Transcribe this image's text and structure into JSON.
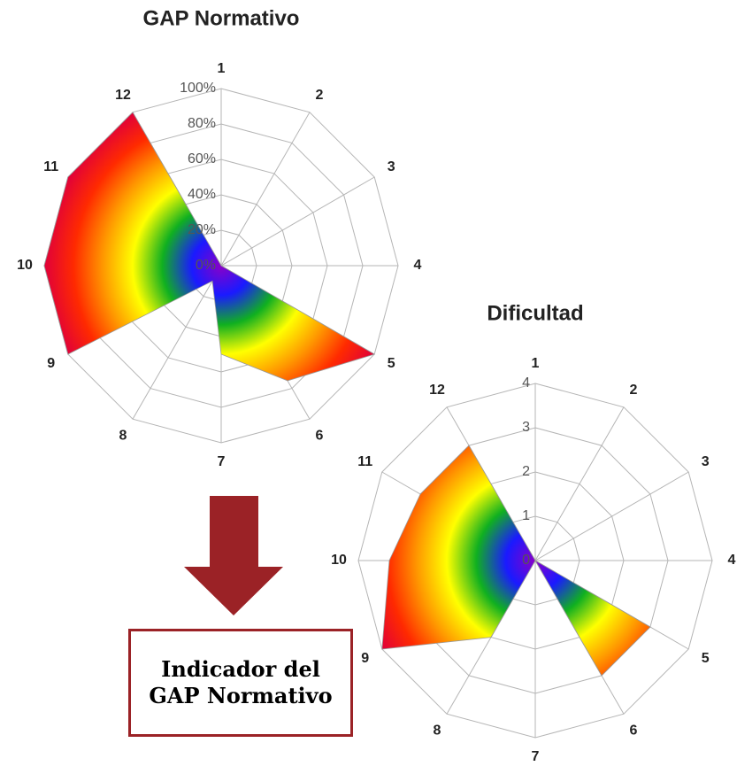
{
  "chart_data": [
    {
      "type": "radar",
      "title": "GAP Normativo",
      "categories": [
        "1",
        "2",
        "3",
        "4",
        "5",
        "6",
        "7",
        "8",
        "9",
        "10",
        "11",
        "12"
      ],
      "values": [
        0,
        0,
        0,
        0,
        100,
        75,
        50,
        10,
        100,
        100,
        100,
        100
      ],
      "ylim": [
        0,
        100
      ],
      "yticks": [
        {
          "value": 0,
          "label": "0%"
        },
        {
          "value": 20,
          "label": "20%"
        },
        {
          "value": 40,
          "label": "40%"
        },
        {
          "value": 60,
          "label": "60%"
        },
        {
          "value": 80,
          "label": "80%"
        },
        {
          "value": 100,
          "label": "100%"
        }
      ],
      "grid": true,
      "colors": [
        "#8a00c8",
        "#1a1aff",
        "#10b020",
        "#ffff00",
        "#ff9900",
        "#ff2a00",
        "#e0003a"
      ]
    },
    {
      "type": "radar",
      "title": "Dificultad",
      "categories": [
        "1",
        "2",
        "3",
        "4",
        "5",
        "6",
        "7",
        "8",
        "9",
        "10",
        "11",
        "12"
      ],
      "values": [
        0,
        0,
        0,
        0,
        3,
        3,
        0,
        2,
        4,
        3.3,
        3,
        3
      ],
      "ylim": [
        0,
        4
      ],
      "yticks": [
        0,
        1,
        2,
        3,
        4
      ],
      "grid": true,
      "colors": [
        "#8a00c8",
        "#1a1aff",
        "#10b020",
        "#ffff00",
        "#ff9900",
        "#ff2a00",
        "#e0003a"
      ]
    }
  ],
  "annotation": {
    "text": "Indicador del GAP Normativo",
    "arrow_color": "#9b2226"
  }
}
